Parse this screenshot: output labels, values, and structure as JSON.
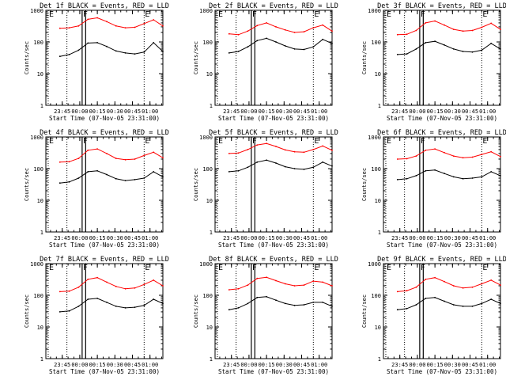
{
  "figure": {
    "colors": {
      "background": "#ffffff",
      "axes": "#000000",
      "events": "#000000",
      "lld": "#ff0000"
    }
  },
  "chart_data": [
    {
      "type": "line",
      "title": "Det 1f BLACK = Events, RED = LLD",
      "xlabel": "Start Time (07-Nov-05 23:31:00)",
      "ylabel": "Counts/sec",
      "yscale": "log",
      "ylim": [
        1,
        1000
      ],
      "y_ticks": [
        "1",
        "10",
        "100",
        "1000"
      ],
      "x_ticks": [
        "23:45",
        "00:00",
        "00:15",
        "00:30",
        "00:45",
        "01:00"
      ],
      "x_tick_minutes": [
        14,
        29,
        44,
        59,
        74,
        89
      ],
      "xlim_minutes": [
        0,
        100
      ],
      "markers": [
        {
          "label": "E",
          "minute_offset": 2,
          "style": "dotted"
        },
        {
          "label": "",
          "minute_offset": 18,
          "style": "dotted"
        },
        {
          "label": "F",
          "minute_offset": 31,
          "style": "solid"
        },
        {
          "label": "",
          "minute_offset": 34,
          "style": "solid"
        },
        {
          "label": "E",
          "minute_offset": 84,
          "style": "dotted"
        }
      ],
      "x": [
        12,
        20,
        28,
        36,
        44,
        52,
        60,
        68,
        76,
        84,
        92,
        100
      ],
      "series": [
        {
          "name": "Events",
          "color": "#000000",
          "values": [
            35,
            40,
            55,
            92,
            95,
            72,
            52,
            45,
            42,
            48,
            95,
            50
          ]
        },
        {
          "name": "LLD",
          "color": "#ff0000",
          "values": [
            270,
            280,
            320,
            520,
            580,
            440,
            320,
            280,
            290,
            380,
            500,
            320
          ]
        }
      ]
    },
    {
      "type": "line",
      "title": "Det 2f BLACK = Events, RED = LLD",
      "xlabel": "Start Time (07-Nov-05 23:31:00)",
      "ylabel": "Counts/sec",
      "yscale": "log",
      "ylim": [
        1,
        1000
      ],
      "y_ticks": [
        "1",
        "10",
        "100",
        "1000"
      ],
      "x_ticks": [
        "23:45",
        "00:00",
        "00:15",
        "00:30",
        "00:45",
        "01:00"
      ],
      "x_tick_minutes": [
        14,
        29,
        44,
        59,
        74,
        89
      ],
      "xlim_minutes": [
        0,
        100
      ],
      "markers": [
        {
          "label": "E",
          "minute_offset": 2,
          "style": "dotted"
        },
        {
          "label": "",
          "minute_offset": 18,
          "style": "dotted"
        },
        {
          "label": "F",
          "minute_offset": 31,
          "style": "solid"
        },
        {
          "label": "",
          "minute_offset": 34,
          "style": "solid"
        },
        {
          "label": "E",
          "minute_offset": 84,
          "style": "dotted"
        }
      ],
      "x": [
        12,
        20,
        28,
        36,
        44,
        52,
        60,
        68,
        76,
        84,
        92,
        100
      ],
      "series": [
        {
          "name": "Events",
          "color": "#000000",
          "values": [
            45,
            50,
            70,
            110,
            130,
            100,
            75,
            60,
            58,
            70,
            120,
            90
          ]
        },
        {
          "name": "LLD",
          "color": "#ff0000",
          "values": [
            180,
            170,
            220,
            330,
            400,
            300,
            240,
            200,
            210,
            280,
            340,
            220
          ]
        }
      ]
    },
    {
      "type": "line",
      "title": "Det 3f BLACK = Events, RED = LLD",
      "xlabel": "Start Time (07-Nov-05 23:31:00)",
      "ylabel": "Counts/sec",
      "yscale": "log",
      "ylim": [
        1,
        1000
      ],
      "y_ticks": [
        "1",
        "10",
        "100",
        "1000"
      ],
      "x_ticks": [
        "23:45",
        "00:00",
        "00:15",
        "00:30",
        "00:45",
        "01:00"
      ],
      "x_tick_minutes": [
        14,
        29,
        44,
        59,
        74,
        89
      ],
      "xlim_minutes": [
        0,
        100
      ],
      "markers": [
        {
          "label": "E",
          "minute_offset": 2,
          "style": "dotted"
        },
        {
          "label": "",
          "minute_offset": 18,
          "style": "dotted"
        },
        {
          "label": "F",
          "minute_offset": 31,
          "style": "solid"
        },
        {
          "label": "",
          "minute_offset": 34,
          "style": "solid"
        },
        {
          "label": "E",
          "minute_offset": 84,
          "style": "dotted"
        }
      ],
      "x": [
        12,
        20,
        28,
        36,
        44,
        52,
        60,
        68,
        76,
        84,
        92,
        100
      ],
      "series": [
        {
          "name": "Events",
          "color": "#000000",
          "values": [
            40,
            42,
            60,
            95,
            105,
            80,
            60,
            50,
            48,
            55,
            90,
            60
          ]
        },
        {
          "name": "LLD",
          "color": "#ff0000",
          "values": [
            170,
            175,
            230,
            400,
            460,
            340,
            250,
            220,
            230,
            290,
            390,
            250
          ]
        }
      ]
    },
    {
      "type": "line",
      "title": "Det 4f BLACK = Events, RED = LLD",
      "xlabel": "Start Time (07-Nov-05 23:31:00)",
      "ylabel": "Counts/sec",
      "yscale": "log",
      "ylim": [
        1,
        1000
      ],
      "y_ticks": [
        "1",
        "10",
        "100",
        "1000"
      ],
      "x_ticks": [
        "23:45",
        "00:00",
        "00:15",
        "00:30",
        "00:45",
        "01:00"
      ],
      "x_tick_minutes": [
        14,
        29,
        44,
        59,
        74,
        89
      ],
      "xlim_minutes": [
        0,
        100
      ],
      "markers": [
        {
          "label": "E",
          "minute_offset": 2,
          "style": "dotted"
        },
        {
          "label": "",
          "minute_offset": 18,
          "style": "dotted"
        },
        {
          "label": "F",
          "minute_offset": 31,
          "style": "solid"
        },
        {
          "label": "",
          "minute_offset": 34,
          "style": "solid"
        },
        {
          "label": "E",
          "minute_offset": 84,
          "style": "dotted"
        }
      ],
      "x": [
        12,
        20,
        28,
        36,
        44,
        52,
        60,
        68,
        76,
        84,
        92,
        100
      ],
      "series": [
        {
          "name": "Events",
          "color": "#000000",
          "values": [
            35,
            38,
            50,
            80,
            85,
            65,
            48,
            42,
            45,
            50,
            80,
            55
          ]
        },
        {
          "name": "LLD",
          "color": "#ff0000",
          "values": [
            160,
            165,
            210,
            380,
            420,
            300,
            210,
            190,
            200,
            260,
            330,
            220
          ]
        }
      ]
    },
    {
      "type": "line",
      "title": "Det 5f BLACK = Events, RED = LLD",
      "xlabel": "Start Time (07-Nov-05 23:31:00)",
      "ylabel": "Counts/sec",
      "yscale": "log",
      "ylim": [
        1,
        1000
      ],
      "y_ticks": [
        "1",
        "10",
        "100",
        "1000"
      ],
      "x_ticks": [
        "23:45",
        "00:00",
        "00:15",
        "00:30",
        "00:45",
        "01:00"
      ],
      "x_tick_minutes": [
        14,
        29,
        44,
        59,
        74,
        89
      ],
      "xlim_minutes": [
        0,
        100
      ],
      "markers": [
        {
          "label": "E",
          "minute_offset": 2,
          "style": "dotted"
        },
        {
          "label": "",
          "minute_offset": 18,
          "style": "dotted"
        },
        {
          "label": "F",
          "minute_offset": 31,
          "style": "solid"
        },
        {
          "label": "",
          "minute_offset": 34,
          "style": "solid"
        },
        {
          "label": "E",
          "minute_offset": 84,
          "style": "dotted"
        }
      ],
      "x": [
        12,
        20,
        28,
        36,
        44,
        52,
        60,
        68,
        76,
        84,
        92,
        100
      ],
      "series": [
        {
          "name": "Events",
          "color": "#000000",
          "values": [
            80,
            85,
            110,
            160,
            185,
            150,
            115,
            100,
            95,
            110,
            160,
            120
          ]
        },
        {
          "name": "LLD",
          "color": "#ff0000",
          "values": [
            300,
            310,
            400,
            560,
            620,
            500,
            390,
            340,
            330,
            400,
            520,
            380
          ]
        }
      ]
    },
    {
      "type": "line",
      "title": "Det 6f BLACK = Events, RED = LLD",
      "xlabel": "Start Time (07-Nov-05 23:31:00)",
      "ylabel": "Counts/sec",
      "yscale": "log",
      "ylim": [
        1,
        1000
      ],
      "y_ticks": [
        "1",
        "10",
        "100",
        "1000"
      ],
      "x_ticks": [
        "23:45",
        "00:00",
        "00:15",
        "00:30",
        "00:45",
        "01:00"
      ],
      "x_tick_minutes": [
        14,
        29,
        44,
        59,
        74,
        89
      ],
      "xlim_minutes": [
        0,
        100
      ],
      "markers": [
        {
          "label": "E",
          "minute_offset": 2,
          "style": "dotted"
        },
        {
          "label": "",
          "minute_offset": 18,
          "style": "dotted"
        },
        {
          "label": "F",
          "minute_offset": 31,
          "style": "solid"
        },
        {
          "label": "",
          "minute_offset": 34,
          "style": "solid"
        },
        {
          "label": "E",
          "minute_offset": 84,
          "style": "dotted"
        }
      ],
      "x": [
        12,
        20,
        28,
        36,
        44,
        52,
        60,
        68,
        76,
        84,
        92,
        100
      ],
      "series": [
        {
          "name": "Events",
          "color": "#000000",
          "values": [
            45,
            48,
            60,
            85,
            90,
            70,
            55,
            48,
            50,
            55,
            80,
            60
          ]
        },
        {
          "name": "LLD",
          "color": "#ff0000",
          "values": [
            200,
            205,
            250,
            380,
            420,
            320,
            250,
            220,
            230,
            280,
            340,
            240
          ]
        }
      ]
    },
    {
      "type": "line",
      "title": "Det 7f BLACK = Events, RED = LLD",
      "xlabel": "Start Time (07-Nov-05 23:31:00)",
      "ylabel": "Counts/sec",
      "yscale": "log",
      "ylim": [
        1,
        1000
      ],
      "y_ticks": [
        "1",
        "10",
        "100",
        "1000"
      ],
      "x_ticks": [
        "23:45",
        "00:00",
        "00:15",
        "00:30",
        "00:45",
        "01:00"
      ],
      "x_tick_minutes": [
        14,
        29,
        44,
        59,
        74,
        89
      ],
      "xlim_minutes": [
        0,
        100
      ],
      "markers": [
        {
          "label": "E",
          "minute_offset": 2,
          "style": "dotted"
        },
        {
          "label": "",
          "minute_offset": 18,
          "style": "dotted"
        },
        {
          "label": "F",
          "minute_offset": 31,
          "style": "solid"
        },
        {
          "label": "",
          "minute_offset": 34,
          "style": "solid"
        },
        {
          "label": "E",
          "minute_offset": 84,
          "style": "dotted"
        }
      ],
      "x": [
        12,
        20,
        28,
        36,
        44,
        52,
        60,
        68,
        76,
        84,
        92,
        100
      ],
      "series": [
        {
          "name": "Events",
          "color": "#000000",
          "values": [
            30,
            32,
            45,
            75,
            80,
            60,
            45,
            40,
            42,
            48,
            75,
            55
          ]
        },
        {
          "name": "LLD",
          "color": "#ff0000",
          "values": [
            130,
            135,
            180,
            320,
            360,
            260,
            190,
            160,
            170,
            220,
            300,
            200
          ]
        }
      ]
    },
    {
      "type": "line",
      "title": "Det 8f BLACK = Events, RED = LLD",
      "xlabel": "Start Time (07-Nov-05 23:31:00)",
      "ylabel": "Counts/sec",
      "yscale": "log",
      "ylim": [
        1,
        1000
      ],
      "y_ticks": [
        "1",
        "10",
        "100",
        "1000"
      ],
      "x_ticks": [
        "23:45",
        "00:00",
        "00:15",
        "00:30",
        "00:45",
        "01:00"
      ],
      "x_tick_minutes": [
        14,
        29,
        44,
        59,
        74,
        89
      ],
      "xlim_minutes": [
        0,
        100
      ],
      "markers": [
        {
          "label": "E",
          "minute_offset": 2,
          "style": "dotted"
        },
        {
          "label": "",
          "minute_offset": 18,
          "style": "dotted"
        },
        {
          "label": "F",
          "minute_offset": 31,
          "style": "solid"
        },
        {
          "label": "",
          "minute_offset": 34,
          "style": "solid"
        },
        {
          "label": "E",
          "minute_offset": 84,
          "style": "dotted"
        }
      ],
      "x": [
        12,
        20,
        28,
        36,
        44,
        52,
        60,
        68,
        76,
        84,
        92,
        100
      ],
      "series": [
        {
          "name": "Events",
          "color": "#000000",
          "values": [
            35,
            40,
            55,
            85,
            90,
            70,
            55,
            48,
            50,
            60,
            60,
            45
          ]
        },
        {
          "name": "LLD",
          "color": "#ff0000",
          "values": [
            150,
            160,
            210,
            340,
            370,
            290,
            230,
            200,
            210,
            280,
            260,
            200
          ]
        }
      ]
    },
    {
      "type": "line",
      "title": "Det 9f BLACK = Events, RED = LLD",
      "xlabel": "Start Time (07-Nov-05 23:31:00)",
      "ylabel": "Counts/sec",
      "yscale": "log",
      "ylim": [
        1,
        1000
      ],
      "y_ticks": [
        "1",
        "10",
        "100",
        "1000"
      ],
      "x_ticks": [
        "23:45",
        "00:00",
        "00:15",
        "00:30",
        "00:45",
        "01:00"
      ],
      "x_tick_minutes": [
        14,
        29,
        44,
        59,
        74,
        89
      ],
      "xlim_minutes": [
        0,
        100
      ],
      "markers": [
        {
          "label": "E",
          "minute_offset": 2,
          "style": "dotted"
        },
        {
          "label": "",
          "minute_offset": 18,
          "style": "dotted"
        },
        {
          "label": "F",
          "minute_offset": 31,
          "style": "solid"
        },
        {
          "label": "",
          "minute_offset": 34,
          "style": "solid"
        },
        {
          "label": "E",
          "minute_offset": 84,
          "style": "dotted"
        }
      ],
      "x": [
        12,
        20,
        28,
        36,
        44,
        52,
        60,
        68,
        76,
        84,
        92,
        100
      ],
      "series": [
        {
          "name": "Events",
          "color": "#000000",
          "values": [
            35,
            38,
            50,
            80,
            85,
            65,
            50,
            45,
            45,
            55,
            75,
            55
          ]
        },
        {
          "name": "LLD",
          "color": "#ff0000",
          "values": [
            130,
            140,
            180,
            320,
            360,
            270,
            200,
            170,
            180,
            230,
            300,
            210
          ]
        }
      ]
    }
  ]
}
